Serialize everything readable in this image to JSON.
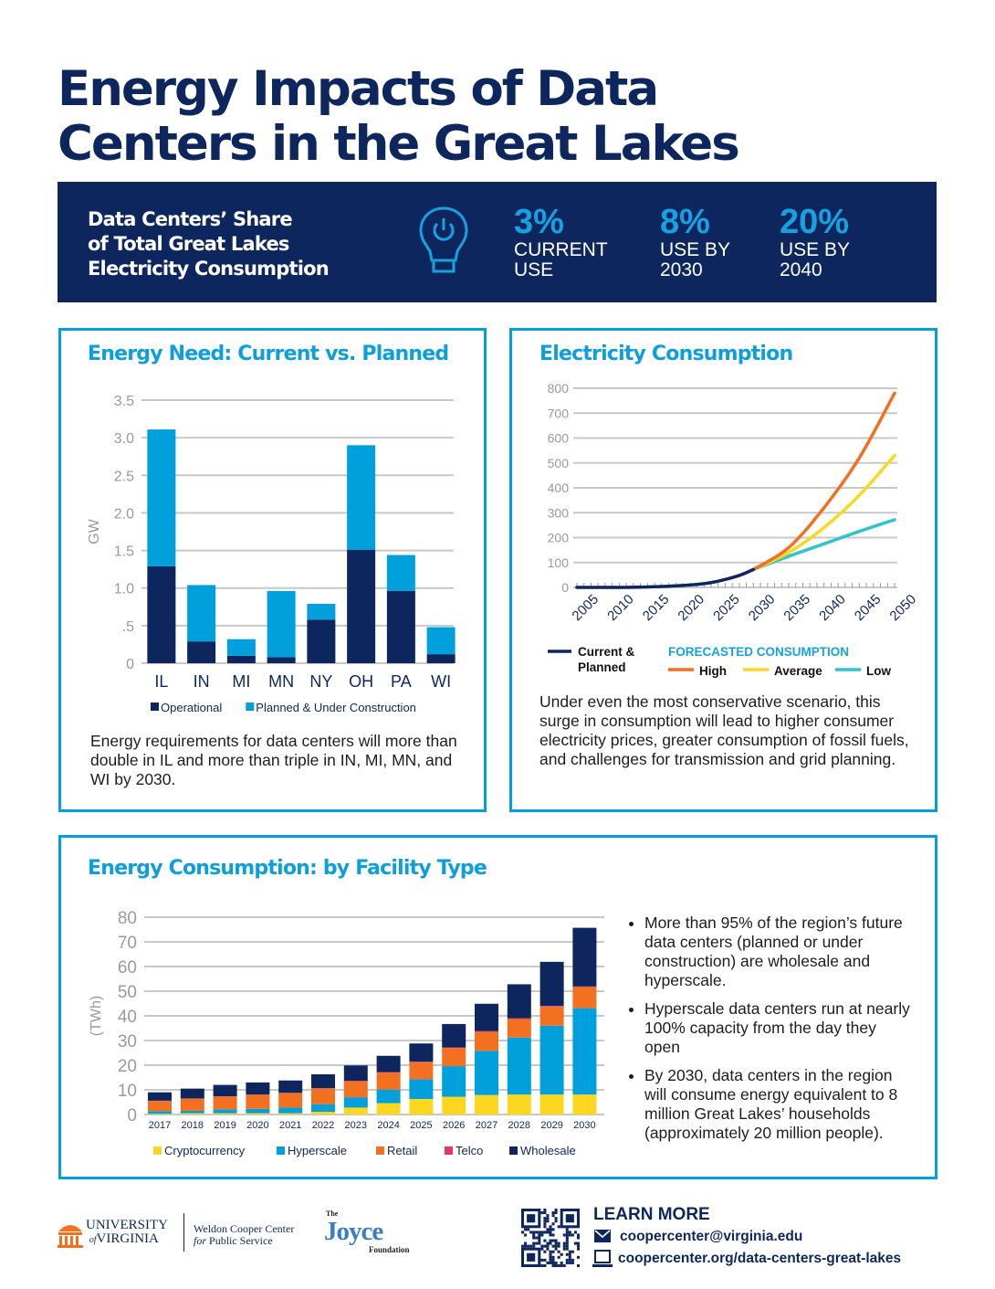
{
  "title": [
    "Energy Impacts of Data",
    "Centers in the Great Lakes"
  ],
  "banner": {
    "text": [
      "Data Centers’ Share",
      "of Total Great Lakes",
      "Electricity Consumption"
    ],
    "icon": "lightbulb-power-icon",
    "stats": [
      {
        "value": "3%",
        "label": [
          "CURRENT",
          "USE"
        ]
      },
      {
        "value": "8%",
        "label": [
          "USE BY",
          "2030"
        ]
      },
      {
        "value": "20%",
        "label": [
          "USE BY",
          "2040"
        ]
      }
    ]
  },
  "colors": {
    "navy": "#0d275e",
    "blue": "#00a0dc",
    "orange": "#f37021",
    "yellow": "#fcd720",
    "teal": "#2ec4d0",
    "pink": "#e8336b"
  },
  "panel1": {
    "title": "Energy Need: Current vs. Planned",
    "caption": "Energy requirements for data centers will more than double in IL and more than triple in IN, MI, MN, and WI by 2030."
  },
  "panel2": {
    "title": "Electricity Consumption",
    "caption": "Under even the most conservative scenario, this surge in consumption will lead to higher consumer electricity prices, greater consumption of fossil fuels, and challenges for transmission and grid planning."
  },
  "panel3": {
    "title": "Energy Consumption: by Facility Type",
    "bullets": [
      "More than 95% of the region’s future data centers (planned or under construction) are wholesale and hyperscale.",
      "Hyperscale data centers run at nearly 100% capacity from the day they open",
      "By 2030, data centers in the region will consume energy equivalent to 8 million Great Lakes’ households (approximately 20 million people)."
    ]
  },
  "chart_data": [
    {
      "type": "bar",
      "stacked": true,
      "ylabel": "GW",
      "ylim": [
        0,
        3.5
      ],
      "yticks": [
        "0",
        ".5",
        "1.0",
        "1.5",
        "2.0",
        "2.5",
        "3.0",
        "3.5"
      ],
      "grid": true,
      "legend": "bottom",
      "categories": [
        "IL",
        "IN",
        "MI",
        "MN",
        "NY",
        "OH",
        "PA",
        "WI"
      ],
      "series": [
        {
          "name": "Operational",
          "color": "#0d275e",
          "values": [
            1.29,
            0.29,
            0.1,
            0.08,
            0.58,
            1.51,
            0.96,
            0.12
          ]
        },
        {
          "name": "Planned & Under Construction",
          "color": "#00a0dc",
          "values": [
            1.82,
            0.75,
            0.22,
            0.88,
            0.21,
            1.39,
            0.48,
            0.36
          ]
        }
      ]
    },
    {
      "type": "line",
      "ylim": [
        0,
        800
      ],
      "yticks": [
        "0",
        "100",
        "200",
        "300",
        "400",
        "500",
        "600",
        "700",
        "800"
      ],
      "xlim": [
        2005,
        2050
      ],
      "xticks": [
        "2005",
        "2010",
        "2015",
        "2020",
        "2025",
        "2030",
        "2035",
        "2040",
        "2045",
        "2050"
      ],
      "grid": true,
      "legend": "bottom",
      "legend_group_title": "FORECASTED CONSUMPTION",
      "series": [
        {
          "name": "Current & Planned",
          "color": "#0d275e",
          "x": [
            2005,
            2010,
            2015,
            2020,
            2023,
            2025,
            2028,
            2030
          ],
          "y": [
            0,
            0,
            2,
            8,
            15,
            25,
            48,
            72
          ]
        },
        {
          "name": "High",
          "color": "#f37021",
          "x": [
            2030,
            2035,
            2040,
            2045,
            2050
          ],
          "y": [
            72,
            160,
            320,
            520,
            780
          ]
        },
        {
          "name": "Average",
          "color": "#fcd720",
          "x": [
            2030,
            2035,
            2040,
            2045,
            2050
          ],
          "y": [
            72,
            140,
            240,
            370,
            530
          ]
        },
        {
          "name": "Low",
          "color": "#2ec4d0",
          "x": [
            2030,
            2035,
            2040,
            2045,
            2050
          ],
          "y": [
            72,
            125,
            175,
            225,
            272
          ]
        }
      ]
    },
    {
      "type": "bar",
      "stacked": true,
      "ylabel": "(TWh)",
      "ylim": [
        0,
        80
      ],
      "yticks": [
        "0",
        "10",
        "20",
        "30",
        "40",
        "50",
        "60",
        "70",
        "80"
      ],
      "grid": true,
      "legend": "bottom",
      "categories": [
        "2017",
        "2018",
        "2019",
        "2020",
        "2021",
        "2022",
        "2023",
        "2024",
        "2025",
        "2026",
        "2027",
        "2028",
        "2029",
        "2030"
      ],
      "series": [
        {
          "name": "Cryptocurrency",
          "color": "#fcd720",
          "values": [
            0.3,
            0.5,
            0.5,
            0.5,
            0.5,
            1.1,
            2.8,
            4.6,
            6.3,
            7.2,
            7.9,
            8.1,
            8.1,
            8.1
          ]
        },
        {
          "name": "Hyperscale",
          "color": "#00a0dc",
          "values": [
            1.1,
            1.0,
            1.6,
            1.8,
            2.3,
            3.1,
            4.2,
            5.5,
            8.0,
            12.4,
            17.9,
            23.1,
            27.9,
            35.0
          ]
        },
        {
          "name": "Retail",
          "color": "#f37021",
          "values": [
            4.1,
            4.9,
            5.2,
            5.7,
            5.9,
            6.3,
            6.5,
            6.9,
            6.9,
            7.4,
            7.7,
            7.5,
            7.8,
            8.6
          ]
        },
        {
          "name": "Telco",
          "color": "#e8336b",
          "values": [
            0.1,
            0.1,
            0.1,
            0.1,
            0.1,
            0.2,
            0.2,
            0.2,
            0.2,
            0.2,
            0.3,
            0.3,
            0.2,
            0.2
          ]
        },
        {
          "name": "Wholesale",
          "color": "#0d275e",
          "values": [
            3.4,
            4.0,
            4.6,
            4.9,
            5.0,
            5.6,
            6.2,
            6.6,
            7.4,
            9.5,
            11.1,
            13.8,
            17.9,
            23.8
          ]
        }
      ]
    }
  ],
  "footer": {
    "logos": [
      "UNIVERSITY of VIRGINIA",
      "Weldon Cooper Center for Public Service",
      "The Joyce Foundation"
    ],
    "learn_more": "LEARN MORE",
    "email": "coopercenter@virginia.edu",
    "url": "coopercenter.org/data-centers-great-lakes",
    "email_icon": "envelope-icon",
    "url_icon": "laptop-icon",
    "qr_icon": "qr-code-icon"
  }
}
